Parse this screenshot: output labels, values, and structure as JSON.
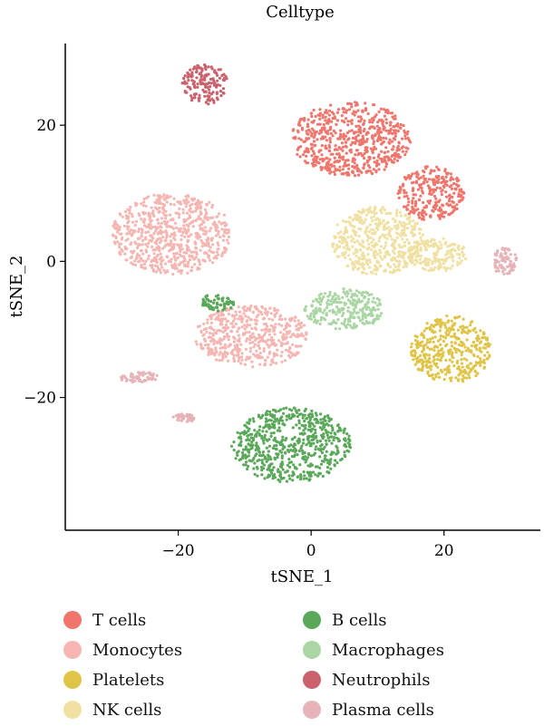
{
  "chart_data": {
    "type": "scatter",
    "title": "Celltype",
    "xlabel": "tSNE_1",
    "ylabel": "tSNE_2",
    "xlim": [
      -37,
      34.5
    ],
    "ylim": [
      -39.5,
      32
    ],
    "xticks": [
      -20,
      0,
      20
    ],
    "yticks": [
      -20,
      0,
      20
    ],
    "tick_labels": {
      "x": [
        "−20",
        "0",
        "20"
      ],
      "y": [
        "−20",
        "0",
        "20"
      ]
    },
    "legend_placement": "bottom",
    "series": [
      {
        "name": "T cells",
        "color": "#f0766d",
        "clusters": [
          {
            "center": [
              6,
              18
            ],
            "spread": [
              9,
              5.5
            ]
          },
          {
            "center": [
              18,
              10
            ],
            "spread": [
              5,
              4
            ]
          }
        ]
      },
      {
        "name": "Monocytes",
        "color": "#f5b6b2",
        "clusters": [
          {
            "center": [
              -21,
              4
            ],
            "spread": [
              9,
              6
            ]
          },
          {
            "center": [
              -9,
              -11
            ],
            "spread": [
              8.5,
              4.5
            ]
          }
        ]
      },
      {
        "name": "Platelets",
        "color": "#e0c447",
        "clusters": [
          {
            "center": [
              21,
              -13
            ],
            "spread": [
              6,
              5
            ]
          }
        ]
      },
      {
        "name": "NK cells",
        "color": "#f0e0a1",
        "clusters": [
          {
            "center": [
              10,
              3
            ],
            "spread": [
              7,
              5
            ]
          },
          {
            "center": [
              19,
              1
            ],
            "spread": [
              4.5,
              2.5
            ]
          }
        ]
      },
      {
        "name": "B cells",
        "color": "#5aa85a",
        "clusters": [
          {
            "center": [
              -3,
              -27
            ],
            "spread": [
              9,
              5.5
            ]
          },
          {
            "center": [
              -14,
              -6
            ],
            "spread": [
              2.5,
              1.3
            ]
          }
        ]
      },
      {
        "name": "Macrophages",
        "color": "#a9d6a3",
        "clusters": [
          {
            "center": [
              5,
              -7
            ],
            "spread": [
              6,
              3
            ]
          }
        ]
      },
      {
        "name": "Neutrophils",
        "color": "#c9626c",
        "clusters": [
          {
            "center": [
              -16,
              26
            ],
            "spread": [
              3.5,
              3
            ]
          }
        ]
      },
      {
        "name": "Plasma cells",
        "color": "#e6b3b8",
        "clusters": [
          {
            "center": [
              -26,
              -17
            ],
            "spread": [
              3,
              0.8
            ]
          },
          {
            "center": [
              -19,
              -23
            ],
            "spread": [
              1.8,
              0.6
            ]
          },
          {
            "center": [
              29,
              0
            ],
            "spread": [
              2,
              2
            ]
          }
        ]
      }
    ]
  }
}
